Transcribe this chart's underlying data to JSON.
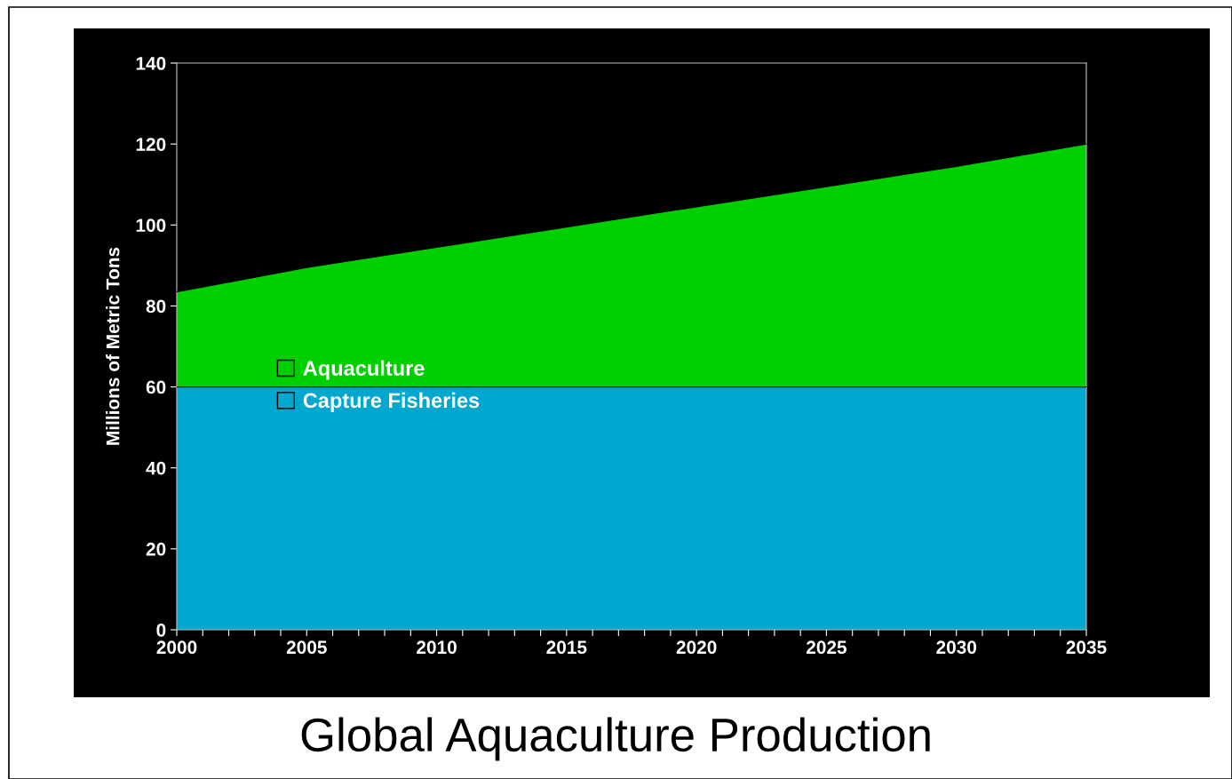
{
  "chart_data": {
    "type": "area",
    "title": "Global Aquaculture Production",
    "ylabel": "Millions of Metric Tons",
    "x": [
      2000,
      2005,
      2010,
      2015,
      2020,
      2025,
      2030,
      2035
    ],
    "stacked": true,
    "series": [
      {
        "name": "Capture Fisheries",
        "color": "#00a8d0",
        "values": [
          60,
          60,
          60,
          60,
          60,
          60,
          60,
          60
        ]
      },
      {
        "name": "Aquaculture",
        "color": "#00d000",
        "values": [
          23.5,
          29.5,
          34.5,
          39.5,
          44.5,
          49.5,
          54.5,
          60
        ]
      }
    ],
    "xlim": [
      2000,
      2035
    ],
    "ylim": [
      0,
      140
    ],
    "xticks": [
      2000,
      {
        "value": 2001,
        "label": null
      },
      {
        "value": 2002,
        "label": null
      },
      {
        "value": 2003,
        "label": null
      },
      {
        "value": 2004,
        "label": null
      },
      2005,
      {
        "value": 2006,
        "label": null
      },
      {
        "value": 2007,
        "label": null
      },
      {
        "value": 2008,
        "label": null
      },
      {
        "value": 2009,
        "label": null
      },
      2010,
      {
        "value": 2011,
        "label": null
      },
      {
        "value": 2012,
        "label": null
      },
      {
        "value": 2013,
        "label": null
      },
      {
        "value": 2014,
        "label": null
      },
      2015,
      {
        "value": 2016,
        "label": null
      },
      {
        "value": 2017,
        "label": null
      },
      {
        "value": 2018,
        "label": null
      },
      {
        "value": 2019,
        "label": null
      },
      2020,
      {
        "value": 2021,
        "label": null
      },
      {
        "value": 2022,
        "label": null
      },
      {
        "value": 2023,
        "label": null
      },
      {
        "value": 2024,
        "label": null
      },
      2025,
      {
        "value": 2026,
        "label": null
      },
      {
        "value": 2027,
        "label": null
      },
      {
        "value": 2028,
        "label": null
      },
      {
        "value": 2029,
        "label": null
      },
      2030,
      {
        "value": 2031,
        "label": null
      },
      {
        "value": 2032,
        "label": null
      },
      {
        "value": 2033,
        "label": null
      },
      {
        "value": 2034,
        "label": null
      },
      2035
    ],
    "yticks": [
      0,
      20,
      40,
      60,
      80,
      100,
      120,
      140
    ],
    "grid": false,
    "legend": "left"
  }
}
